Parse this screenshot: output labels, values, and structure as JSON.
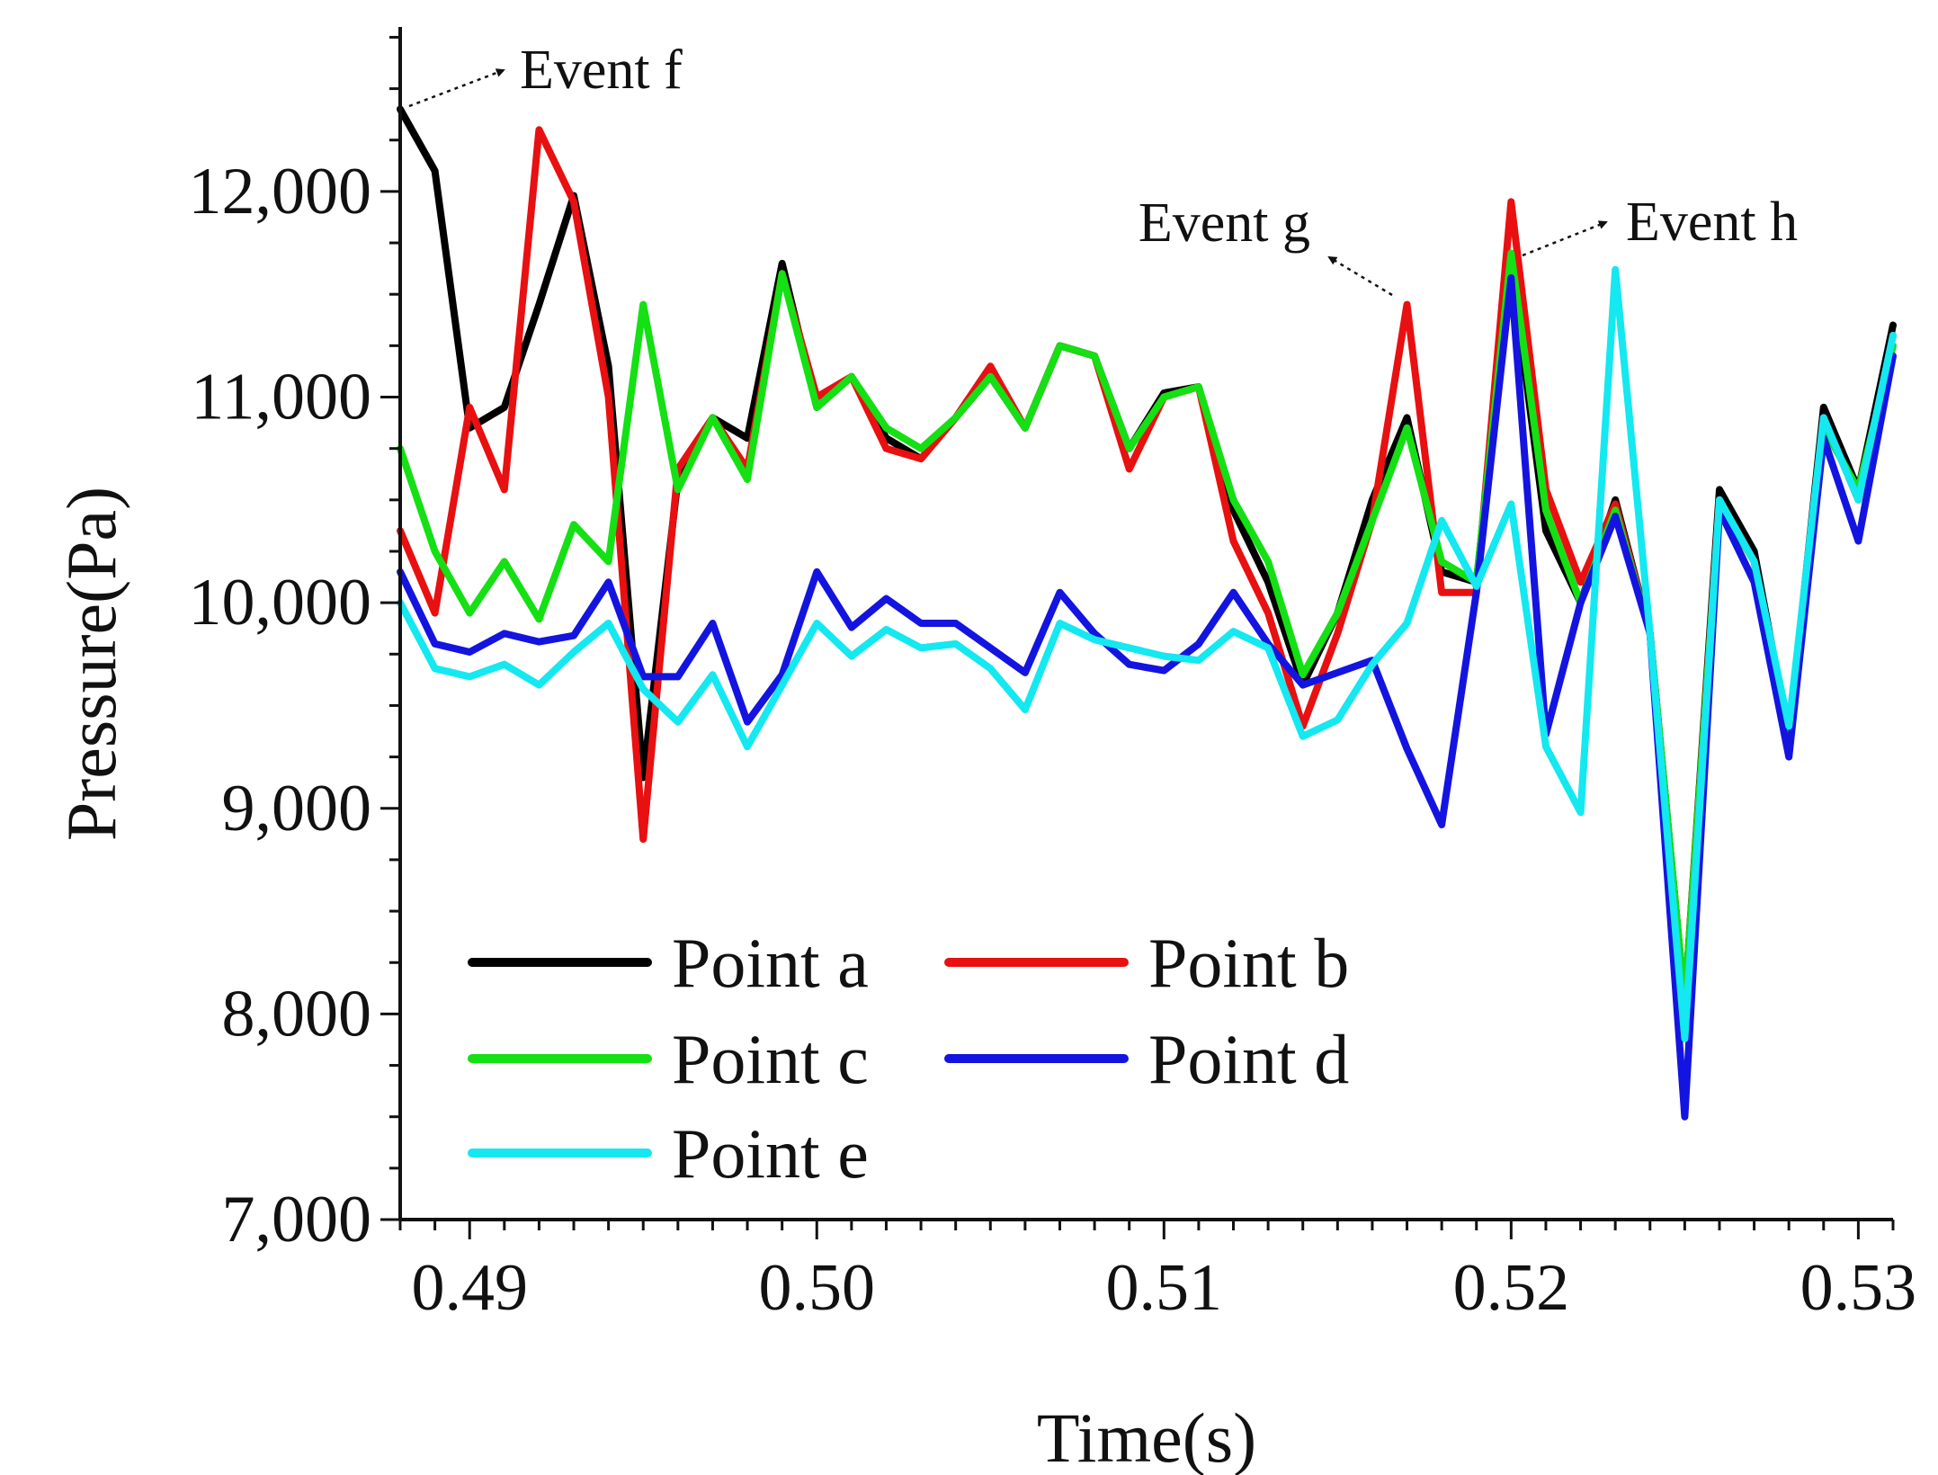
{
  "chart_data": {
    "type": "line",
    "title": "",
    "xlabel": "Time(s)",
    "ylabel": "Pressure(Pa)",
    "xlim": [
      0.488,
      0.531
    ],
    "ylim": [
      7000,
      12800
    ],
    "xticks": [
      0.49,
      0.5,
      0.51,
      0.52,
      0.53
    ],
    "xtick_labels": [
      "0.49",
      "0.50",
      "0.51",
      "0.52",
      "0.53"
    ],
    "yticks": [
      7000,
      8000,
      9000,
      10000,
      11000,
      12000
    ],
    "ytick_labels": [
      "7,000",
      "8,000",
      "9,000",
      "10,000",
      "11,000",
      "12,000"
    ],
    "grid": false,
    "legend_position": "bottom-left",
    "x": [
      0.488,
      0.489,
      0.49,
      0.491,
      0.492,
      0.493,
      0.494,
      0.495,
      0.496,
      0.497,
      0.498,
      0.499,
      0.5,
      0.501,
      0.502,
      0.503,
      0.504,
      0.505,
      0.506,
      0.507,
      0.508,
      0.509,
      0.51,
      0.511,
      0.512,
      0.513,
      0.514,
      0.515,
      0.516,
      0.517,
      0.518,
      0.519,
      0.52,
      0.521,
      0.522,
      0.523,
      0.524,
      0.525,
      0.526,
      0.527,
      0.528,
      0.529,
      0.53,
      0.531
    ],
    "series": [
      {
        "name": "Point a",
        "color": "#000000",
        "values": [
          12400,
          12100,
          10850,
          10950,
          11450,
          11980,
          11150,
          9150,
          10600,
          10900,
          10800,
          11650,
          10950,
          11100,
          10800,
          10700,
          10900,
          11100,
          10850,
          11250,
          11200,
          10750,
          11020,
          11050,
          10450,
          10100,
          9600,
          9950,
          10500,
          10900,
          10150,
          10100,
          11650,
          10350,
          10000,
          10500,
          9850,
          8050,
          10550,
          10250,
          9350,
          10950,
          10550,
          11350
        ]
      },
      {
        "name": "Point b",
        "color": "#e81010",
        "values": [
          10350,
          9950,
          10950,
          10550,
          12300,
          11950,
          11000,
          8850,
          10650,
          10900,
          10650,
          11600,
          11000,
          11100,
          10750,
          10700,
          10900,
          11150,
          10850,
          11250,
          11200,
          10650,
          11000,
          11050,
          10300,
          9950,
          9400,
          9850,
          10400,
          11450,
          10050,
          10050,
          11950,
          10550,
          10100,
          10480,
          9850,
          8050,
          10500,
          10200,
          9350,
          10900,
          10500,
          11300
        ]
      },
      {
        "name": "Point c",
        "color": "#14e014",
        "values": [
          10750,
          10250,
          9950,
          10200,
          9920,
          10380,
          10200,
          11450,
          10550,
          10900,
          10600,
          11600,
          10950,
          11100,
          10850,
          10750,
          10900,
          11100,
          10850,
          11250,
          11200,
          10750,
          11000,
          11050,
          10500,
          10200,
          9650,
          9950,
          10400,
          10850,
          10200,
          10100,
          11700,
          10450,
          10000,
          10450,
          9850,
          8050,
          10480,
          10200,
          9350,
          10850,
          10550,
          11250
        ]
      },
      {
        "name": "Point d",
        "color": "#1414e0",
        "values": [
          10150,
          9800,
          9760,
          9850,
          9810,
          9840,
          10100,
          9640,
          9640,
          9900,
          9420,
          9650,
          10150,
          9880,
          10020,
          9900,
          9900,
          9780,
          9660,
          10050,
          9850,
          9700,
          9670,
          9800,
          10050,
          9800,
          9600,
          9660,
          9720,
          9290,
          8920,
          10050,
          11580,
          9360,
          10000,
          10420,
          9850,
          7500,
          10450,
          10100,
          9250,
          10800,
          10300,
          11200
        ]
      },
      {
        "name": "Point e",
        "color": "#14e8f0",
        "values": [
          10000,
          9680,
          9640,
          9700,
          9600,
          9760,
          9900,
          9580,
          9420,
          9650,
          9300,
          9600,
          9900,
          9740,
          9870,
          9780,
          9800,
          9680,
          9480,
          9900,
          9820,
          9780,
          9740,
          9720,
          9860,
          9780,
          9350,
          9430,
          9700,
          9900,
          10400,
          10080,
          10480,
          9300,
          8980,
          11620,
          9850,
          7880,
          10500,
          10200,
          9400,
          10900,
          10500,
          11300
        ]
      }
    ],
    "annotations": [
      {
        "label": "Event f",
        "x": 0.488,
        "y": 12400
      },
      {
        "label": "Event g",
        "x": 0.517,
        "y": 11450
      },
      {
        "label": "Event h",
        "x": 0.52,
        "y": 11900
      }
    ]
  }
}
